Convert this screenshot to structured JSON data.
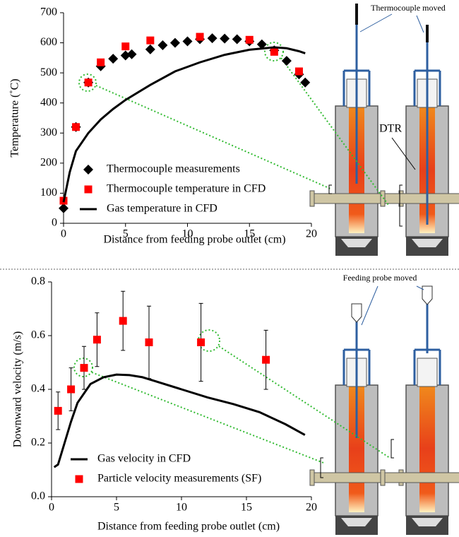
{
  "chart_data": [
    {
      "type": "scatter",
      "xlabel": "Distance from feeding probe outlet (cm)",
      "ylabel": "Temperature (˚C)",
      "xlim": [
        0,
        20
      ],
      "xticks": [
        0,
        5,
        10,
        15,
        20
      ],
      "ylim": [
        0,
        700
      ],
      "yticks": [
        0,
        100,
        200,
        300,
        400,
        500,
        600,
        700
      ],
      "legend": "lower left",
      "annotations": [
        "Thermocouple moved",
        "DTR"
      ],
      "series": [
        {
          "name": "Thermocouple measurements",
          "marker": "diamond",
          "color": "#000000",
          "x": [
            0,
            1,
            2,
            3,
            4,
            5,
            5.5,
            7,
            8,
            9,
            10,
            11,
            12,
            13,
            14,
            15,
            16,
            17,
            18,
            19,
            19.5
          ],
          "values": [
            50,
            320,
            468,
            522,
            547,
            558,
            562,
            578,
            592,
            600,
            605,
            612,
            615,
            614,
            612,
            605,
            595,
            575,
            540,
            495,
            468
          ]
        },
        {
          "name": "Thermocouple temperature in CFD",
          "marker": "square",
          "color": "#ff0000",
          "x": [
            0,
            1,
            2,
            3,
            5,
            7,
            11,
            15,
            17,
            19
          ],
          "values": [
            75,
            320,
            468,
            535,
            588,
            608,
            620,
            610,
            570,
            505
          ]
        },
        {
          "name": "Gas temperature in CFD",
          "marker": "line",
          "color": "#000000",
          "x": [
            0,
            0.5,
            1,
            2,
            3,
            4,
            5,
            7,
            9,
            11,
            13,
            15,
            17,
            18,
            19,
            19.5
          ],
          "values": [
            70,
            170,
            240,
            300,
            345,
            380,
            410,
            460,
            505,
            535,
            560,
            577,
            585,
            582,
            572,
            565
          ]
        }
      ]
    },
    {
      "type": "scatter",
      "xlabel": "Distance from feeding probe outlet (cm)",
      "ylabel": "Downward velocity (m/s)",
      "xlim": [
        0,
        20
      ],
      "xticks": [
        0,
        5,
        10,
        15,
        20
      ],
      "ylim": [
        0,
        0.8
      ],
      "yticks": [
        {
          "value": 0,
          "label": "0.0"
        },
        0.2,
        0.4,
        0.6,
        0.8
      ],
      "legend": "lower left",
      "annotations": [
        "Feeding probe moved"
      ],
      "series": [
        {
          "name": "Gas velocity in CFD",
          "marker": "line",
          "color": "#000000",
          "x": [
            0.2,
            0.5,
            1,
            1.5,
            2,
            3,
            4,
            5,
            6,
            7,
            8,
            10,
            12,
            14,
            16,
            18,
            19.5
          ],
          "values": [
            0.11,
            0.12,
            0.2,
            0.28,
            0.35,
            0.42,
            0.445,
            0.455,
            0.453,
            0.445,
            0.43,
            0.4,
            0.37,
            0.345,
            0.315,
            0.27,
            0.23
          ]
        },
        {
          "name": "Particle velocity measurements (SF)",
          "marker": "square",
          "color": "#ff0000",
          "x": [
            0.5,
            1.5,
            2.5,
            3.5,
            5.5,
            7.5,
            11.5,
            16.5
          ],
          "values": [
            0.32,
            0.4,
            0.48,
            0.585,
            0.655,
            0.575,
            0.575,
            0.51
          ],
          "errors": [
            0.07,
            0.08,
            0.08,
            0.1,
            0.11,
            0.135,
            0.145,
            0.11
          ]
        }
      ]
    }
  ]
}
